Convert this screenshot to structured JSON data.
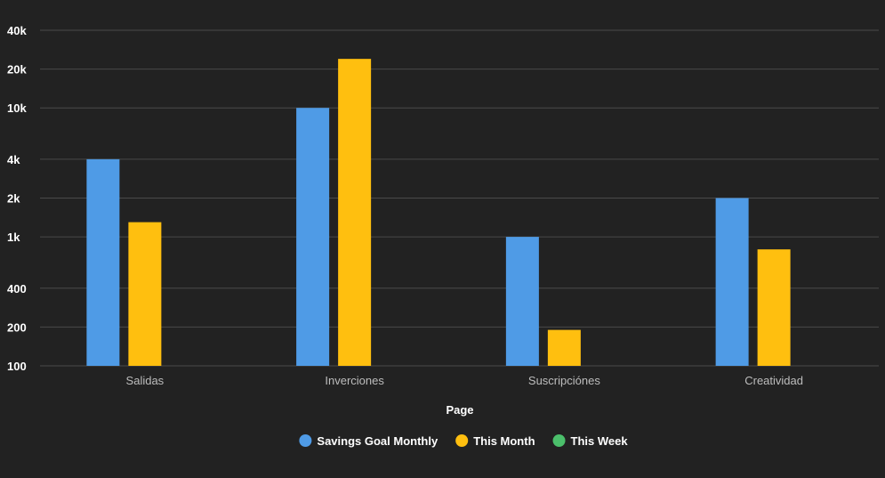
{
  "chart_data": {
    "type": "bar",
    "yscale": "log",
    "ylim": [
      100,
      40000
    ],
    "yticks": [
      100,
      200,
      400,
      1000,
      2000,
      4000,
      10000,
      20000,
      40000
    ],
    "ytick_labels": [
      "100",
      "200",
      "400",
      "1k",
      "2k",
      "4k",
      "10k",
      "20k",
      "40k"
    ],
    "categories": [
      "Salidas",
      "Inverciones",
      "Suscripciónes",
      "Creatividad"
    ],
    "xlabel": "Page",
    "grid": true,
    "legend_position": "bottom",
    "series": [
      {
        "name": "Savings Goal Monthly",
        "color": "#4f9be6",
        "values": [
          4000,
          10000,
          1000,
          2000
        ]
      },
      {
        "name": "This Month",
        "color": "#ffbf0f",
        "values": [
          1300,
          24000,
          190,
          800
        ]
      },
      {
        "name": "This Week",
        "color": "#4bbf6b",
        "values": [
          null,
          null,
          null,
          null
        ]
      }
    ]
  }
}
